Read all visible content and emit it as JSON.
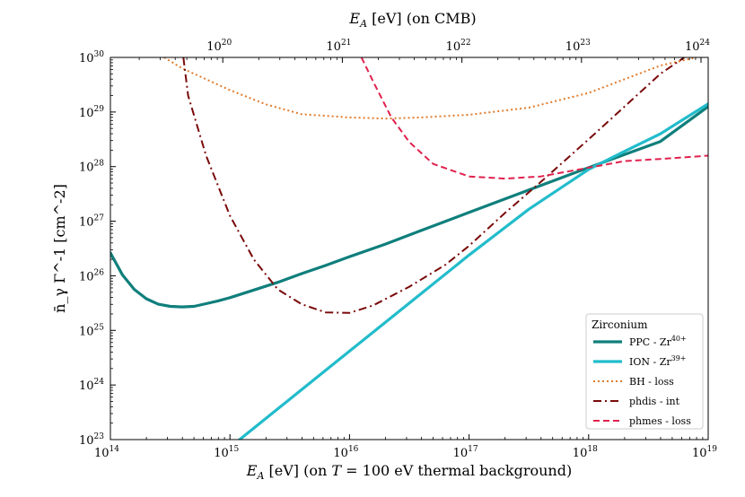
{
  "chart_data": {
    "type": "line",
    "legend_title": "Zirconium",
    "legend_position": "bottom-right",
    "xlabel_base": "E_A [eV]",
    "xlabel": "E_A [eV] (on T = 100 eV thermal background)",
    "xlabel_parts": {
      "sym": "E",
      "sub": "A",
      "unit": " [eV] (on ",
      "tsym": "T",
      "rest": " = 100 eV thermal background)"
    },
    "x2label": "E_A [eV] (on CMB)",
    "x2label_parts": {
      "sym": "E",
      "sub": "A",
      "unit": " [eV] (on CMB)"
    },
    "ylabel": "n̄_γ Γ^-1 [cm^-2]",
    "xlim_exp": [
      14,
      19
    ],
    "ylim_exp": [
      23,
      30
    ],
    "x_tick_exps": [
      14,
      15,
      16,
      17,
      18,
      19
    ],
    "y_tick_exps": [
      23,
      24,
      25,
      26,
      27,
      28,
      29,
      30
    ],
    "x2_tick_exps": [
      20,
      21,
      22,
      23,
      24
    ],
    "x2_to_x_offset_exp": -5.06,
    "series": [
      {
        "name": "PPC - Zr",
        "name_sup": "40+",
        "color": "#0f7f7c",
        "dash": "solid",
        "width": 3.2,
        "x_exp": [
          14,
          14.1,
          14.2,
          14.3,
          14.4,
          14.5,
          14.6,
          14.7,
          14.8,
          14.9,
          15,
          15.2,
          15.4,
          15.6,
          15.8,
          16,
          16.3,
          16.6,
          17,
          17.4,
          17.8,
          18,
          18.3,
          18.6,
          19
        ],
        "y_exp": [
          26.42,
          26.02,
          25.75,
          25.58,
          25.48,
          25.44,
          25.43,
          25.44,
          25.49,
          25.54,
          25.6,
          25.74,
          25.88,
          26.04,
          26.19,
          26.35,
          26.58,
          26.83,
          27.16,
          27.49,
          27.82,
          27.98,
          28.22,
          28.46,
          29.1
        ]
      },
      {
        "name": "ION - Zr",
        "name_sup": "39+",
        "color": "#22bccb",
        "dash": "solid",
        "width": 3.2,
        "x_exp": [
          15.08,
          15.5,
          16,
          16.5,
          17,
          17.5,
          18,
          18.3,
          18.6,
          19
        ],
        "y_exp": [
          23,
          23.74,
          24.62,
          25.5,
          26.38,
          27.22,
          27.95,
          28.28,
          28.6,
          29.15
        ]
      },
      {
        "name": "BH - loss",
        "name_sup": "",
        "color": "#e07b2c",
        "dash": "2,3",
        "width": 2,
        "x_exp": [
          14.45,
          14.6,
          14.8,
          15,
          15.3,
          15.6,
          16,
          16.3,
          16.6,
          17,
          17.5,
          18,
          18.3,
          18.6,
          18.9
        ],
        "y_exp": [
          30,
          29.8,
          29.6,
          29.4,
          29.14,
          28.96,
          28.9,
          28.88,
          28.9,
          28.95,
          29.08,
          29.35,
          29.6,
          29.85,
          30
        ]
      },
      {
        "name": "phdis - int",
        "name_sup": "",
        "color": "#7a0a0a",
        "dash": "9,4,2,4",
        "width": 2,
        "x_exp": [
          14.61,
          14.65,
          14.8,
          15,
          15.2,
          15.4,
          15.6,
          15.8,
          16,
          16.2,
          16.5,
          16.8,
          17,
          17.3,
          17.6,
          18,
          18.3,
          18.6,
          18.8
        ],
        "y_exp": [
          30,
          29.3,
          28.2,
          27.1,
          26.3,
          25.75,
          25.48,
          25.33,
          25.32,
          25.46,
          25.8,
          26.2,
          26.55,
          27.15,
          27.72,
          28.5,
          29.1,
          29.7,
          30
        ]
      },
      {
        "name": "phmes - loss",
        "name_sup": "",
        "color": "#e0224e",
        "dash": "7,4",
        "width": 2,
        "x_exp": [
          16.1,
          16.2,
          16.35,
          16.5,
          16.7,
          17,
          17.3,
          17.6,
          18,
          18.3,
          18.6,
          19
        ],
        "y_exp": [
          30,
          29.55,
          28.9,
          28.45,
          28.05,
          27.82,
          27.78,
          27.82,
          27.98,
          28.1,
          28.14,
          28.2
        ]
      }
    ]
  }
}
